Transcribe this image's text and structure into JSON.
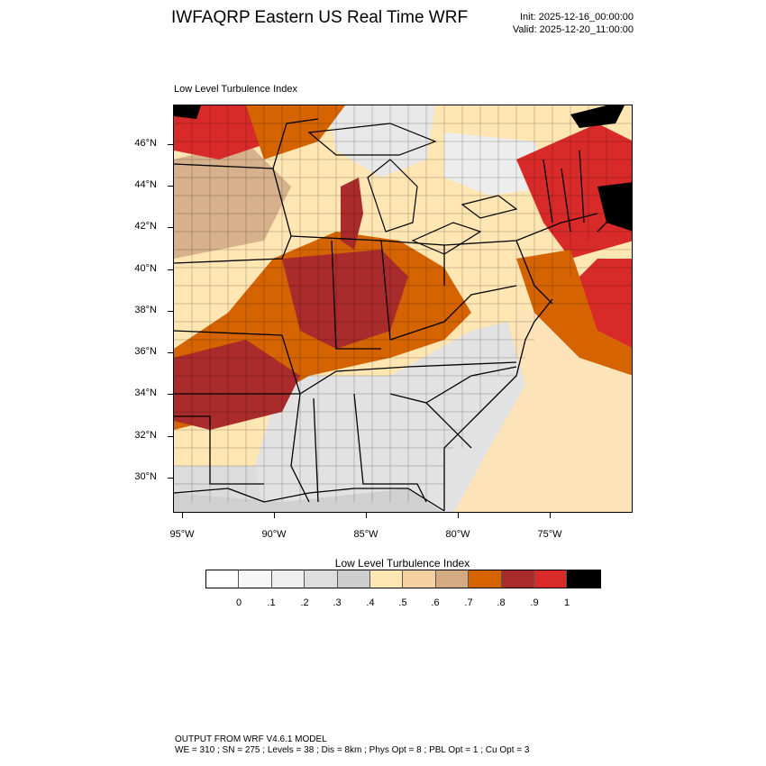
{
  "header": {
    "title": "IWFAQRP Eastern US Real Time WRF",
    "init": "Init: 2025-12-16_00:00:00",
    "valid": "Valid: 2025-12-20_11:00:00"
  },
  "panel": {
    "title": "Low Level Turbulence Index",
    "lat_labels": [
      "46°N",
      "44°N",
      "42°N",
      "40°N",
      "38°N",
      "36°N",
      "34°N",
      "32°N",
      "30°N"
    ],
    "lon_labels": [
      "95°W",
      "90°W",
      "85°W",
      "80°W",
      "75°W"
    ]
  },
  "colorbar": {
    "title": "Low Level Turbulence Index",
    "labels": [
      "0",
      ".1",
      ".2",
      ".3",
      ".4",
      ".5",
      ".6",
      ".7",
      ".8",
      ".9",
      "1"
    ],
    "colors": [
      "#ffffff",
      "#f7f7f7",
      "#efefef",
      "#dedede",
      "#cdcdcd",
      "#ffe6b3",
      "#f5d0a0",
      "#d4aa82",
      "#d46300",
      "#aa2b2b",
      "#d92a2a",
      "#000000"
    ]
  },
  "footer": {
    "line1": "OUTPUT FROM WRF V4.6.1 MODEL",
    "line2": "WE = 310 ; SN = 275 ; Levels = 38 ; Dis = 8km ; Phys Opt = 8 ; PBL Opt = 1 ; Cu Opt = 3"
  }
}
